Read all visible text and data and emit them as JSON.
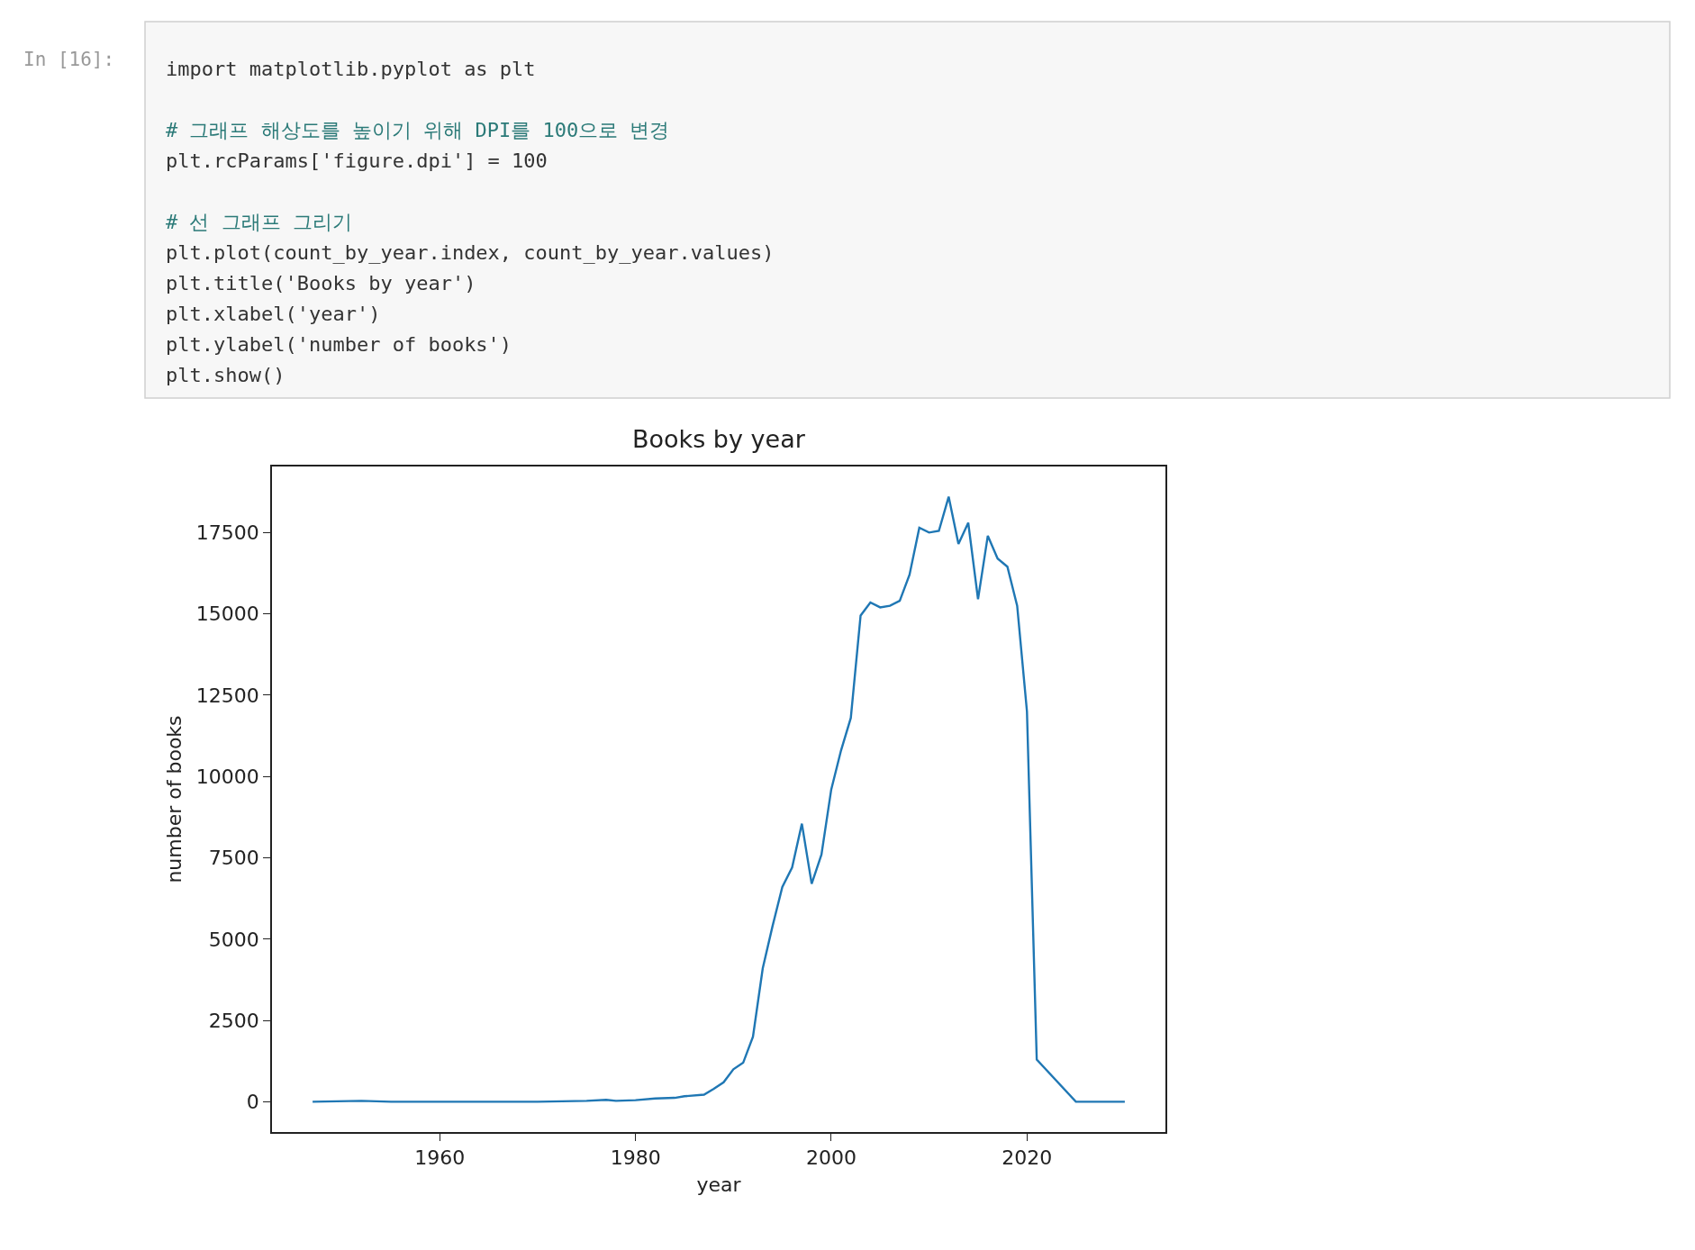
{
  "chart_data": {
    "type": "line",
    "title": "Books by year",
    "xlabel": "year",
    "ylabel": "number of books",
    "x": [
      1947,
      1952,
      1955,
      1970,
      1975,
      1977,
      1978,
      1980,
      1982,
      1984,
      1985,
      1987,
      1988,
      1989,
      1990,
      1991,
      1992,
      1993,
      1994,
      1995,
      1996,
      1997,
      1998,
      1999,
      2000,
      2001,
      2002,
      2003,
      2004,
      2005,
      2006,
      2007,
      2008,
      2009,
      2010,
      2011,
      2012,
      2013,
      2014,
      2015,
      2016,
      2017,
      2018,
      2019,
      2020,
      2021,
      2025,
      2030
    ],
    "series": [
      {
        "color": "#1f77b4",
        "values": [
          0,
          30,
          0,
          0,
          30,
          60,
          30,
          50,
          100,
          120,
          170,
          220,
          400,
          600,
          1000,
          1200,
          2000,
          4100,
          5400,
          6600,
          7200,
          8550,
          6700,
          7600,
          9600,
          10800,
          11800,
          14950,
          15350,
          15200,
          15250,
          15400,
          16200,
          17650,
          17500,
          17550,
          18600,
          17150,
          17800,
          15450,
          17400,
          16700,
          16450,
          15250,
          12000,
          1300,
          0,
          0
        ]
      }
    ],
    "xlim": [
      1942.85,
      2034.15
    ],
    "xticks": [
      1960,
      1980,
      2000,
      2020
    ],
    "ylim": [
      -930,
      19530
    ],
    "yticks": [
      0,
      2500,
      5000,
      7500,
      10000,
      12500,
      15000,
      17500
    ],
    "marker": "none",
    "line_style": "solid",
    "annotations": [
      "In [16]:",
      "import matplotlib.pyplot as plt",
      "# 그래프 해상도를 높이기 위해 DPI를 100으로 변경",
      "plt.rcParams['figure.dpi'] = 100",
      "# 선 그래프 그리기",
      "plt.plot(count_by_year.index, count_by_year.values)",
      "plt.title('Books by year')",
      "plt.xlabel('year')",
      "plt.ylabel('number of books')",
      "plt.show()"
    ]
  }
}
